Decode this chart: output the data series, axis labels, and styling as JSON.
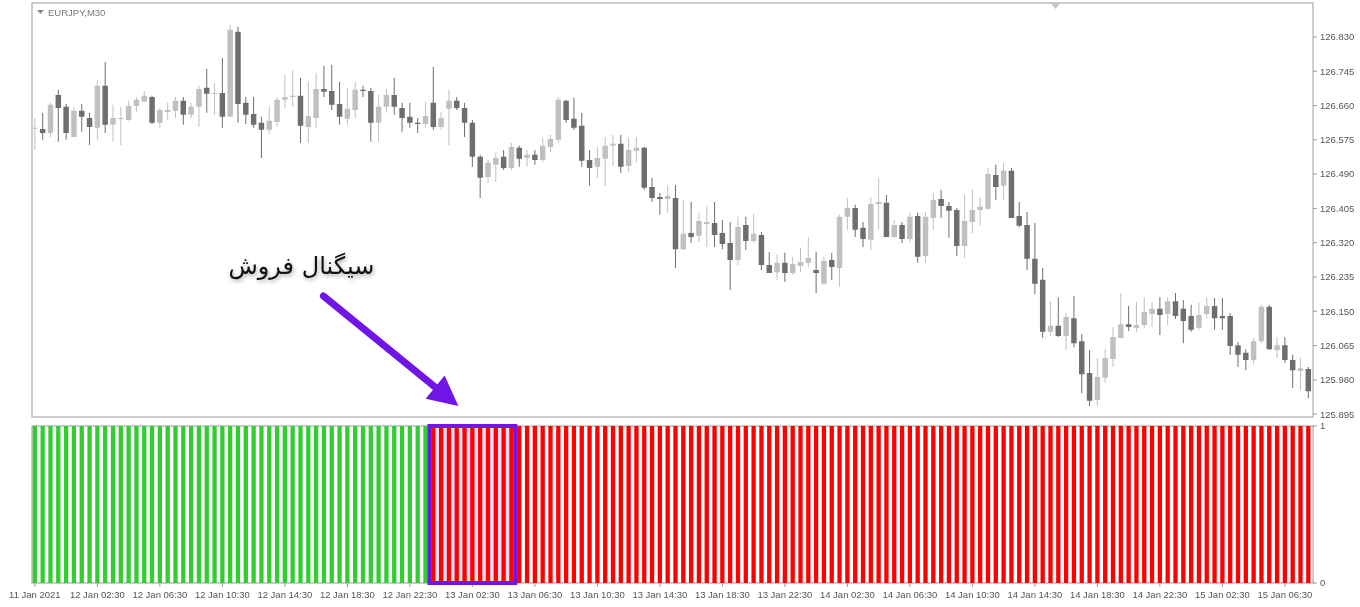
{
  "chart_data": [
    {
      "type": "candlestick",
      "title": "EURJPY,M30",
      "x": [
        "2021-01-11T22:30",
        "2021-01-11T23:00",
        "2021-01-11T23:30",
        "2021-01-12T00:00",
        "2021-01-12T00:30",
        "2021-01-12T01:00",
        "2021-01-12T01:30",
        "2021-01-12T02:00",
        "2021-01-12T02:30",
        "2021-01-12T03:00",
        "2021-01-12T03:30",
        "2021-01-12T04:00",
        "2021-01-12T04:30",
        "2021-01-12T05:00",
        "2021-01-12T05:30",
        "2021-01-12T06:00",
        "2021-01-12T06:30",
        "2021-01-12T07:00",
        "2021-01-12T07:30",
        "2021-01-12T08:00",
        "2021-01-12T08:30",
        "2021-01-12T09:00",
        "2021-01-12T09:30",
        "2021-01-12T10:00",
        "2021-01-12T10:30",
        "2021-01-12T11:00",
        "2021-01-12T11:30",
        "2021-01-12T12:00",
        "2021-01-12T12:30",
        "2021-01-12T13:00",
        "2021-01-12T13:30",
        "2021-01-12T14:00",
        "2021-01-12T14:30",
        "2021-01-12T15:00",
        "2021-01-12T15:30",
        "2021-01-12T16:00",
        "2021-01-12T16:30",
        "2021-01-12T17:00",
        "2021-01-12T17:30",
        "2021-01-12T18:00",
        "2021-01-12T18:30",
        "2021-01-12T19:00",
        "2021-01-12T19:30",
        "2021-01-12T20:00",
        "2021-01-12T20:30",
        "2021-01-12T21:00",
        "2021-01-12T21:30",
        "2021-01-12T22:00",
        "2021-01-12T22:30",
        "2021-01-12T23:00",
        "2021-01-12T23:30",
        "2021-01-13T00:00",
        "2021-01-13T00:30",
        "2021-01-13T01:00",
        "2021-01-13T01:30",
        "2021-01-13T02:00",
        "2021-01-13T02:30",
        "2021-01-13T03:00",
        "2021-01-13T03:30",
        "2021-01-13T04:00",
        "2021-01-13T04:30",
        "2021-01-13T05:00",
        "2021-01-13T05:30",
        "2021-01-13T06:00",
        "2021-01-13T06:30",
        "2021-01-13T07:00",
        "2021-01-13T07:30",
        "2021-01-13T08:00",
        "2021-01-13T08:30",
        "2021-01-13T09:00",
        "2021-01-13T09:30",
        "2021-01-13T10:00",
        "2021-01-13T10:30",
        "2021-01-13T11:00",
        "2021-01-13T11:30",
        "2021-01-13T12:00",
        "2021-01-13T12:30",
        "2021-01-13T13:00",
        "2021-01-13T13:30",
        "2021-01-13T14:00",
        "2021-01-13T14:30",
        "2021-01-13T15:00",
        "2021-01-13T15:30",
        "2021-01-13T16:00",
        "2021-01-13T16:30",
        "2021-01-13T17:00",
        "2021-01-13T17:30",
        "2021-01-13T18:00",
        "2021-01-13T18:30",
        "2021-01-13T19:00",
        "2021-01-13T19:30",
        "2021-01-13T20:00",
        "2021-01-13T20:30",
        "2021-01-13T21:00",
        "2021-01-13T21:30",
        "2021-01-13T22:00",
        "2021-01-13T22:30",
        "2021-01-13T23:00",
        "2021-01-13T23:30",
        "2021-01-14T00:00",
        "2021-01-14T00:30",
        "2021-01-14T01:00",
        "2021-01-14T01:30",
        "2021-01-14T02:00",
        "2021-01-14T02:30",
        "2021-01-14T03:00",
        "2021-01-14T03:30",
        "2021-01-14T04:00",
        "2021-01-14T04:30",
        "2021-01-14T05:00",
        "2021-01-14T05:30",
        "2021-01-14T06:00",
        "2021-01-14T06:30",
        "2021-01-14T07:00",
        "2021-01-14T07:30",
        "2021-01-14T08:00",
        "2021-01-14T08:30",
        "2021-01-14T09:00",
        "2021-01-14T09:30",
        "2021-01-14T10:00",
        "2021-01-14T10:30",
        "2021-01-14T11:00",
        "2021-01-14T11:30",
        "2021-01-14T12:00",
        "2021-01-14T12:30",
        "2021-01-14T13:00",
        "2021-01-14T13:30",
        "2021-01-14T14:00",
        "2021-01-14T14:30",
        "2021-01-14T15:00",
        "2021-01-14T15:30",
        "2021-01-14T16:00",
        "2021-01-14T16:30",
        "2021-01-14T17:00",
        "2021-01-14T17:30",
        "2021-01-14T18:00",
        "2021-01-14T18:30",
        "2021-01-14T19:00",
        "2021-01-14T19:30",
        "2021-01-14T20:00",
        "2021-01-14T20:30",
        "2021-01-14T21:00",
        "2021-01-14T21:30",
        "2021-01-14T22:00",
        "2021-01-14T22:30",
        "2021-01-14T23:00",
        "2021-01-14T23:30",
        "2021-01-15T00:00",
        "2021-01-15T00:30",
        "2021-01-15T01:00",
        "2021-01-15T01:30",
        "2021-01-15T02:00",
        "2021-01-15T02:30",
        "2021-01-15T03:00",
        "2021-01-15T03:30",
        "2021-01-15T04:00",
        "2021-01-15T04:30",
        "2021-01-15T05:00",
        "2021-01-15T05:30",
        "2021-01-15T06:00",
        "2021-01-15T06:30",
        "2021-01-15T07:00",
        "2021-01-15T07:30",
        "2021-01-15T08:00"
      ],
      "ohlc": [
        [
          126.605,
          126.629,
          126.55,
          126.605
        ],
        [
          126.602,
          126.642,
          126.575,
          126.592
        ],
        [
          126.592,
          126.667,
          126.582,
          126.662
        ],
        [
          126.686,
          126.699,
          126.57,
          126.654
        ],
        [
          126.657,
          126.664,
          126.575,
          126.592
        ],
        [
          126.582,
          126.657,
          126.582,
          126.647
        ],
        [
          126.647,
          126.664,
          126.595,
          126.632
        ],
        [
          126.629,
          126.642,
          126.562,
          126.607
        ],
        [
          126.605,
          126.724,
          126.575,
          126.709
        ],
        [
          126.709,
          126.768,
          126.592,
          126.612
        ],
        [
          126.612,
          126.662,
          126.57,
          126.629
        ],
        [
          126.627,
          126.657,
          126.562,
          126.629
        ],
        [
          126.624,
          126.672,
          126.622,
          126.659
        ],
        [
          126.659,
          126.681,
          126.644,
          126.674
        ],
        [
          126.669,
          126.696,
          126.669,
          126.684
        ],
        [
          126.681,
          126.684,
          126.614,
          126.617
        ],
        [
          126.617,
          126.654,
          126.605,
          126.649
        ],
        [
          126.644,
          126.667,
          126.624,
          126.649
        ],
        [
          126.647,
          126.681,
          126.629,
          126.672
        ],
        [
          126.672,
          126.681,
          126.612,
          126.637
        ],
        [
          126.637,
          126.667,
          126.629,
          126.657
        ],
        [
          126.657,
          126.709,
          126.607,
          126.701
        ],
        [
          126.704,
          126.751,
          126.642,
          126.689
        ],
        [
          126.689,
          126.716,
          126.637,
          126.691
        ],
        [
          126.691,
          126.778,
          126.605,
          126.632
        ],
        [
          126.632,
          126.86,
          126.632,
          126.848
        ],
        [
          126.843,
          126.855,
          126.617,
          126.664
        ],
        [
          126.667,
          126.681,
          126.614,
          126.637
        ],
        [
          126.639,
          126.681,
          126.605,
          126.612
        ],
        [
          126.617,
          126.632,
          126.53,
          126.6
        ],
        [
          126.6,
          126.657,
          126.59,
          126.622
        ],
        [
          126.619,
          126.681,
          126.607,
          126.674
        ],
        [
          126.674,
          126.736,
          126.654,
          126.681
        ],
        [
          126.681,
          126.748,
          126.657,
          126.684
        ],
        [
          126.684,
          126.729,
          126.567,
          126.61
        ],
        [
          126.607,
          126.719,
          126.567,
          126.634
        ],
        [
          126.629,
          126.741,
          126.605,
          126.701
        ],
        [
          126.701,
          126.758,
          126.681,
          126.694
        ],
        [
          126.696,
          126.761,
          126.649,
          126.662
        ],
        [
          126.664,
          126.719,
          126.612,
          126.632
        ],
        [
          126.627,
          126.704,
          126.612,
          126.652
        ],
        [
          126.649,
          126.719,
          126.629,
          126.699
        ],
        [
          126.699,
          126.709,
          126.681,
          126.696
        ],
        [
          126.696,
          126.704,
          126.57,
          126.617
        ],
        [
          126.617,
          126.686,
          126.57,
          126.657
        ],
        [
          126.657,
          126.701,
          126.642,
          126.686
        ],
        [
          126.686,
          126.729,
          126.637,
          126.657
        ],
        [
          126.654,
          126.667,
          126.595,
          126.629
        ],
        [
          126.632,
          126.667,
          126.605,
          126.617
        ],
        [
          126.617,
          126.629,
          126.592,
          126.614
        ],
        [
          126.614,
          126.669,
          126.605,
          126.634
        ],
        [
          126.667,
          126.756,
          126.6,
          126.607
        ],
        [
          126.607,
          126.644,
          126.6,
          126.629
        ],
        [
          126.652,
          126.699,
          126.562,
          126.672
        ],
        [
          126.672,
          126.681,
          126.649,
          126.654
        ],
        [
          126.654,
          126.667,
          126.582,
          126.617
        ],
        [
          126.617,
          126.624,
          126.508,
          126.533
        ],
        [
          126.533,
          126.538,
          126.431,
          126.481
        ],
        [
          126.483,
          126.525,
          126.468,
          126.518
        ],
        [
          126.513,
          126.543,
          126.471,
          126.53
        ],
        [
          126.533,
          126.55,
          126.5,
          126.505
        ],
        [
          126.505,
          126.567,
          126.5,
          126.557
        ],
        [
          126.555,
          126.56,
          126.508,
          126.528
        ],
        [
          126.53,
          126.55,
          126.508,
          126.538
        ],
        [
          126.538,
          126.55,
          126.513,
          126.525
        ],
        [
          126.525,
          126.58,
          126.52,
          126.56
        ],
        [
          126.557,
          126.587,
          126.545,
          126.577
        ],
        [
          126.575,
          126.681,
          126.567,
          126.674
        ],
        [
          126.672,
          126.674,
          126.617,
          126.624
        ],
        [
          126.627,
          126.679,
          126.6,
          126.605
        ],
        [
          126.61,
          126.642,
          126.508,
          126.523
        ],
        [
          126.525,
          126.55,
          126.461,
          126.505
        ],
        [
          126.508,
          126.557,
          126.481,
          126.53
        ],
        [
          126.528,
          126.582,
          126.461,
          126.56
        ],
        [
          126.56,
          126.587,
          126.51,
          126.565
        ],
        [
          126.565,
          126.587,
          126.493,
          126.508
        ],
        [
          126.51,
          126.58,
          126.495,
          126.55
        ],
        [
          126.547,
          126.582,
          126.52,
          126.555
        ],
        [
          126.555,
          126.557,
          126.451,
          126.456
        ],
        [
          126.458,
          126.481,
          126.421,
          126.431
        ],
        [
          126.433,
          126.443,
          126.389,
          126.428
        ],
        [
          126.428,
          126.461,
          126.394,
          126.436
        ],
        [
          126.431,
          126.463,
          126.257,
          126.304
        ],
        [
          126.304,
          126.426,
          126.302,
          126.342
        ],
        [
          126.344,
          126.421,
          126.319,
          126.334
        ],
        [
          126.337,
          126.394,
          126.322,
          126.374
        ],
        [
          126.366,
          126.409,
          126.309,
          126.371
        ],
        [
          126.369,
          126.421,
          126.309,
          126.339
        ],
        [
          126.344,
          126.376,
          126.304,
          126.317
        ],
        [
          126.319,
          126.371,
          126.203,
          126.277
        ],
        [
          126.277,
          126.384,
          126.265,
          126.359
        ],
        [
          126.364,
          126.384,
          126.302,
          126.324
        ],
        [
          126.324,
          126.391,
          126.319,
          126.342
        ],
        [
          126.339,
          126.347,
          126.252,
          126.265
        ],
        [
          126.265,
          126.297,
          126.245,
          126.245
        ],
        [
          126.247,
          126.29,
          126.228,
          126.27
        ],
        [
          126.27,
          126.295,
          126.223,
          126.245
        ],
        [
          126.245,
          126.285,
          126.24,
          126.267
        ],
        [
          126.262,
          126.307,
          126.247,
          126.272
        ],
        [
          126.27,
          126.334,
          126.26,
          126.282
        ],
        [
          126.252,
          126.297,
          126.195,
          126.245
        ],
        [
          126.218,
          126.285,
          126.215,
          126.275
        ],
        [
          126.277,
          126.295,
          126.228,
          126.26
        ],
        [
          126.257,
          126.389,
          126.21,
          126.384
        ],
        [
          126.384,
          126.431,
          126.352,
          126.406
        ],
        [
          126.406,
          126.414,
          126.334,
          126.352
        ],
        [
          126.357,
          126.371,
          126.309,
          126.329
        ],
        [
          126.327,
          126.433,
          126.302,
          126.416
        ],
        [
          126.416,
          126.481,
          126.352,
          126.421
        ],
        [
          126.419,
          126.438,
          126.334,
          126.334
        ],
        [
          126.334,
          126.376,
          126.332,
          126.364
        ],
        [
          126.364,
          126.371,
          126.319,
          126.329
        ],
        [
          126.329,
          126.394,
          126.322,
          126.384
        ],
        [
          126.386,
          126.394,
          126.27,
          126.285
        ],
        [
          126.287,
          126.396,
          126.27,
          126.384
        ],
        [
          126.381,
          126.443,
          126.352,
          126.426
        ],
        [
          126.428,
          126.451,
          126.381,
          126.411
        ],
        [
          126.411,
          126.421,
          126.332,
          126.399
        ],
        [
          126.401,
          126.406,
          126.287,
          126.312
        ],
        [
          126.312,
          126.438,
          126.282,
          126.374
        ],
        [
          126.371,
          126.451,
          126.344,
          126.401
        ],
        [
          126.401,
          126.433,
          126.362,
          126.409
        ],
        [
          126.404,
          126.505,
          126.401,
          126.49
        ],
        [
          126.488,
          126.513,
          126.426,
          126.458
        ],
        [
          126.461,
          126.518,
          126.426,
          126.498
        ],
        [
          126.498,
          126.505,
          126.381,
          126.381
        ],
        [
          126.386,
          126.421,
          126.359,
          126.362
        ],
        [
          126.364,
          126.396,
          126.252,
          126.28
        ],
        [
          126.28,
          126.369,
          126.193,
          126.218
        ],
        [
          126.228,
          126.257,
          126.084,
          126.099
        ],
        [
          126.099,
          126.175,
          126.089,
          126.114
        ],
        [
          126.114,
          126.185,
          126.086,
          126.089
        ],
        [
          126.089,
          126.146,
          126.054,
          126.136
        ],
        [
          126.133,
          126.188,
          126.061,
          126.071
        ],
        [
          126.076,
          126.094,
          125.947,
          125.994
        ],
        [
          125.997,
          126.054,
          125.915,
          125.928
        ],
        [
          125.93,
          126.034,
          125.915,
          125.987
        ],
        [
          125.985,
          126.056,
          125.972,
          126.034
        ],
        [
          126.032,
          126.111,
          126.012,
          126.086
        ],
        [
          126.084,
          126.195,
          126.084,
          126.118
        ],
        [
          126.118,
          126.163,
          126.101,
          126.111
        ],
        [
          126.109,
          126.173,
          126.099,
          126.116
        ],
        [
          126.116,
          126.185,
          126.109,
          126.148
        ],
        [
          126.143,
          126.173,
          126.111,
          126.156
        ],
        [
          126.156,
          126.185,
          126.091,
          126.141
        ],
        [
          126.143,
          126.185,
          126.116,
          126.175
        ],
        [
          126.175,
          126.195,
          126.131,
          126.138
        ],
        [
          126.156,
          126.178,
          126.071,
          126.126
        ],
        [
          126.138,
          126.166,
          126.099,
          126.104
        ],
        [
          126.109,
          126.171,
          126.104,
          126.141
        ],
        [
          126.143,
          126.185,
          126.133,
          126.163
        ],
        [
          126.163,
          126.183,
          126.104,
          126.133
        ],
        [
          126.138,
          126.183,
          126.104,
          126.133
        ],
        [
          126.138,
          126.146,
          126.042,
          126.064
        ],
        [
          126.066,
          126.074,
          126.012,
          126.042
        ],
        [
          126.047,
          126.056,
          126.004,
          126.029
        ],
        [
          126.029,
          126.084,
          126.019,
          126.076
        ],
        [
          126.076,
          126.166,
          126.071,
          126.161
        ],
        [
          126.161,
          126.166,
          126.054,
          126.056
        ],
        [
          126.054,
          126.086,
          126.034,
          126.066
        ],
        [
          126.066,
          126.086,
          126.022,
          126.029
        ],
        [
          126.029,
          126.042,
          125.96,
          126.004
        ],
        [
          126.002,
          126.034,
          125.955,
          126.009
        ],
        [
          126.007,
          126.012,
          125.935,
          125.952
        ]
      ],
      "colors": [
        "#c0c0c0",
        "#6e6e6e",
        "#c0c0c0",
        "#6e6e6e",
        "#6e6e6e",
        "#c0c0c0",
        "#6e6e6e",
        "#6e6e6e",
        "#c0c0c0",
        "#6e6e6e",
        "#c0c0c0",
        "#c0c0c0",
        "#c0c0c0",
        "#c0c0c0",
        "#c0c0c0",
        "#6e6e6e",
        "#c0c0c0",
        "#c0c0c0",
        "#c0c0c0",
        "#6e6e6e",
        "#c0c0c0",
        "#c0c0c0",
        "#6e6e6e",
        "#c0c0c0",
        "#6e6e6e",
        "#c0c0c0",
        "#6e6e6e",
        "#6e6e6e",
        "#6e6e6e",
        "#6e6e6e",
        "#c0c0c0",
        "#c0c0c0",
        "#c0c0c0",
        "#c0c0c0",
        "#6e6e6e",
        "#c0c0c0",
        "#c0c0c0",
        "#6e6e6e",
        "#6e6e6e",
        "#6e6e6e",
        "#c0c0c0",
        "#c0c0c0",
        "#6e6e6e",
        "#6e6e6e",
        "#c0c0c0",
        "#c0c0c0",
        "#6e6e6e",
        "#6e6e6e",
        "#6e6e6e",
        "#6e6e6e",
        "#c0c0c0",
        "#6e6e6e",
        "#c0c0c0",
        "#c0c0c0",
        "#6e6e6e",
        "#6e6e6e",
        "#6e6e6e",
        "#6e6e6e",
        "#c0c0c0",
        "#c0c0c0",
        "#6e6e6e",
        "#c0c0c0",
        "#6e6e6e",
        "#c0c0c0",
        "#6e6e6e",
        "#c0c0c0",
        "#c0c0c0",
        "#c0c0c0",
        "#6e6e6e",
        "#6e6e6e",
        "#6e6e6e",
        "#6e6e6e",
        "#c0c0c0",
        "#c0c0c0",
        "#c0c0c0",
        "#6e6e6e",
        "#c0c0c0",
        "#c0c0c0",
        "#6e6e6e",
        "#6e6e6e",
        "#6e6e6e",
        "#c0c0c0",
        "#6e6e6e",
        "#c0c0c0",
        "#6e6e6e",
        "#c0c0c0",
        "#c0c0c0",
        "#6e6e6e",
        "#6e6e6e",
        "#6e6e6e",
        "#c0c0c0",
        "#6e6e6e",
        "#c0c0c0",
        "#6e6e6e",
        "#6e6e6e",
        "#c0c0c0",
        "#6e6e6e",
        "#c0c0c0",
        "#c0c0c0",
        "#c0c0c0",
        "#6e6e6e",
        "#c0c0c0",
        "#6e6e6e",
        "#c0c0c0",
        "#c0c0c0",
        "#6e6e6e",
        "#6e6e6e",
        "#c0c0c0",
        "#c0c0c0",
        "#6e6e6e",
        "#c0c0c0",
        "#6e6e6e",
        "#c0c0c0",
        "#6e6e6e",
        "#c0c0c0",
        "#c0c0c0",
        "#6e6e6e",
        "#6e6e6e",
        "#6e6e6e",
        "#c0c0c0",
        "#c0c0c0",
        "#c0c0c0",
        "#c0c0c0",
        "#6e6e6e",
        "#c0c0c0",
        "#6e6e6e",
        "#6e6e6e",
        "#6e6e6e",
        "#6e6e6e",
        "#6e6e6e",
        "#c0c0c0",
        "#6e6e6e",
        "#c0c0c0",
        "#6e6e6e",
        "#6e6e6e",
        "#6e6e6e",
        "#c0c0c0",
        "#c0c0c0",
        "#c0c0c0",
        "#c0c0c0",
        "#6e6e6e",
        "#c0c0c0",
        "#c0c0c0",
        "#c0c0c0",
        "#6e6e6e",
        "#c0c0c0",
        "#6e6e6e",
        "#6e6e6e",
        "#6e6e6e",
        "#c0c0c0",
        "#c0c0c0",
        "#6e6e6e",
        "#6e6e6e",
        "#6e6e6e",
        "#6e6e6e",
        "#6e6e6e",
        "#c0c0c0",
        "#c0c0c0",
        "#6e6e6e",
        "#c0c0c0",
        "#6e6e6e",
        "#6e6e6e",
        "#c0c0c0",
        "#6e6e6e"
      ],
      "xlim": [
        "2021-01-11T22:19",
        "2021-01-15T08:18"
      ],
      "ylim": [
        125.888,
        126.914
      ],
      "yticks": [
        {
          "value": 126.83,
          "label": "126.830"
        },
        126.745,
        {
          "value": 126.66,
          "label": "126.660"
        },
        126.575,
        {
          "value": 126.49,
          "label": "126.490"
        },
        126.405,
        {
          "value": 126.32,
          "label": "126.320"
        },
        126.235,
        {
          "value": 126.15,
          "label": "126.150"
        },
        126.065,
        {
          "value": 125.98,
          "label": "125.980"
        },
        125.895
      ],
      "tick_labels": "y"
    },
    {
      "type": "bar",
      "xlim": [
        "2021-01-11T22:19",
        "2021-01-15T08:18"
      ],
      "xticks": [
        {
          "value": "2021-01-11T22:30",
          "label": "11 Jan 2021"
        },
        {
          "value": "2021-01-12T02:30",
          "label": "12 Jan 02:30"
        },
        {
          "value": "2021-01-12T06:30",
          "label": "12 Jan 06:30"
        },
        {
          "value": "2021-01-12T10:30",
          "label": "12 Jan 10:30"
        },
        {
          "value": "2021-01-12T14:30",
          "label": "12 Jan 14:30"
        },
        {
          "value": "2021-01-12T18:30",
          "label": "12 Jan 18:30"
        },
        {
          "value": "2021-01-12T22:30",
          "label": "12 Jan 22:30"
        },
        {
          "value": "2021-01-13T02:30",
          "label": "13 Jan 02:30"
        },
        {
          "value": "2021-01-13T06:30",
          "label": "13 Jan 06:30"
        },
        {
          "value": "2021-01-13T10:30",
          "label": "13 Jan 10:30"
        },
        {
          "value": "2021-01-13T14:30",
          "label": "13 Jan 14:30"
        },
        {
          "value": "2021-01-13T18:30",
          "label": "13 Jan 18:30"
        },
        {
          "value": "2021-01-13T22:30",
          "label": "13 Jan 22:30"
        },
        {
          "value": "2021-01-14T02:30",
          "label": "14 Jan 02:30"
        },
        {
          "value": "2021-01-14T06:30",
          "label": "14 Jan 06:30"
        },
        {
          "value": "2021-01-14T10:30",
          "label": "14 Jan 10:30"
        },
        {
          "value": "2021-01-14T14:30",
          "label": "14 Jan 14:30"
        },
        {
          "value": "2021-01-14T18:30",
          "label": "14 Jan 18:30"
        },
        {
          "value": "2021-01-14T22:30",
          "label": "14 Jan 22:30"
        },
        {
          "value": "2021-01-15T02:30",
          "label": "15 Jan 02:30"
        },
        {
          "value": "2021-01-15T06:30",
          "label": "15 Jan 06:30"
        }
      ],
      "ylim": [
        0,
        1
      ],
      "yticks": [
        0,
        1
      ],
      "series": [
        {
          "color": "#32cd32",
          "x": [
            "2021-01-11T22:30",
            "2021-01-11T23:00",
            "2021-01-11T23:30",
            "2021-01-12T00:00",
            "2021-01-12T00:30",
            "2021-01-12T01:00",
            "2021-01-12T01:30",
            "2021-01-12T02:00",
            "2021-01-12T02:30",
            "2021-01-12T03:00",
            "2021-01-12T03:30",
            "2021-01-12T04:00",
            "2021-01-12T04:30",
            "2021-01-12T05:00",
            "2021-01-12T05:30",
            "2021-01-12T06:00",
            "2021-01-12T06:30",
            "2021-01-12T07:00",
            "2021-01-12T07:30",
            "2021-01-12T08:00",
            "2021-01-12T08:30",
            "2021-01-12T09:00",
            "2021-01-12T09:30",
            "2021-01-12T10:00",
            "2021-01-12T10:30",
            "2021-01-12T11:00",
            "2021-01-12T11:30",
            "2021-01-12T12:00",
            "2021-01-12T12:30",
            "2021-01-12T13:00",
            "2021-01-12T13:30",
            "2021-01-12T14:00",
            "2021-01-12T14:30",
            "2021-01-12T15:00",
            "2021-01-12T15:30",
            "2021-01-12T16:00",
            "2021-01-12T16:30",
            "2021-01-12T17:00",
            "2021-01-12T17:30",
            "2021-01-12T18:00",
            "2021-01-12T18:30",
            "2021-01-12T19:00",
            "2021-01-12T19:30",
            "2021-01-12T20:00",
            "2021-01-12T20:30",
            "2021-01-12T21:00",
            "2021-01-12T21:30",
            "2021-01-12T22:00",
            "2021-01-12T22:30",
            "2021-01-12T23:00",
            "2021-01-12T23:30"
          ],
          "values": [
            1,
            1,
            1,
            1,
            1,
            1,
            1,
            1,
            1,
            1,
            1,
            1,
            1,
            1,
            1,
            1,
            1,
            1,
            1,
            1,
            1,
            1,
            1,
            1,
            1,
            1,
            1,
            1,
            1,
            1,
            1,
            1,
            1,
            1,
            1,
            1,
            1,
            1,
            1,
            1,
            1,
            1,
            1,
            1,
            1,
            1,
            1,
            1,
            1,
            1,
            1
          ]
        },
        {
          "color": "#ff0000",
          "x": [
            "2021-01-13T00:00",
            "2021-01-13T00:30",
            "2021-01-13T01:00",
            "2021-01-13T01:30",
            "2021-01-13T02:00",
            "2021-01-13T02:30",
            "2021-01-13T03:00",
            "2021-01-13T03:30",
            "2021-01-13T04:00",
            "2021-01-13T04:30",
            "2021-01-13T05:00",
            "2021-01-13T05:30",
            "2021-01-13T06:00",
            "2021-01-13T06:30",
            "2021-01-13T07:00",
            "2021-01-13T07:30",
            "2021-01-13T08:00",
            "2021-01-13T08:30",
            "2021-01-13T09:00",
            "2021-01-13T09:30",
            "2021-01-13T10:00",
            "2021-01-13T10:30",
            "2021-01-13T11:00",
            "2021-01-13T11:30",
            "2021-01-13T12:00",
            "2021-01-13T12:30",
            "2021-01-13T13:00",
            "2021-01-13T13:30",
            "2021-01-13T14:00",
            "2021-01-13T14:30",
            "2021-01-13T15:00",
            "2021-01-13T15:30",
            "2021-01-13T16:00",
            "2021-01-13T16:30",
            "2021-01-13T17:00",
            "2021-01-13T17:30",
            "2021-01-13T18:00",
            "2021-01-13T18:30",
            "2021-01-13T19:00",
            "2021-01-13T19:30",
            "2021-01-13T20:00",
            "2021-01-13T20:30",
            "2021-01-13T21:00",
            "2021-01-13T21:30",
            "2021-01-13T22:00",
            "2021-01-13T22:30",
            "2021-01-13T23:00",
            "2021-01-13T23:30",
            "2021-01-14T00:00",
            "2021-01-14T00:30",
            "2021-01-14T01:00",
            "2021-01-14T01:30",
            "2021-01-14T02:00",
            "2021-01-14T02:30",
            "2021-01-14T03:00",
            "2021-01-14T03:30",
            "2021-01-14T04:00",
            "2021-01-14T04:30",
            "2021-01-14T05:00",
            "2021-01-14T05:30",
            "2021-01-14T06:00",
            "2021-01-14T06:30",
            "2021-01-14T07:00",
            "2021-01-14T07:30",
            "2021-01-14T08:00",
            "2021-01-14T08:30",
            "2021-01-14T09:00",
            "2021-01-14T09:30",
            "2021-01-14T10:00",
            "2021-01-14T10:30",
            "2021-01-14T11:00",
            "2021-01-14T11:30",
            "2021-01-14T12:00",
            "2021-01-14T12:30",
            "2021-01-14T13:00",
            "2021-01-14T13:30",
            "2021-01-14T14:00",
            "2021-01-14T14:30",
            "2021-01-14T15:00",
            "2021-01-14T15:30",
            "2021-01-14T16:00",
            "2021-01-14T16:30",
            "2021-01-14T17:00",
            "2021-01-14T17:30",
            "2021-01-14T18:00",
            "2021-01-14T18:30",
            "2021-01-14T19:00",
            "2021-01-14T19:30",
            "2021-01-14T20:00",
            "2021-01-14T20:30",
            "2021-01-14T21:00",
            "2021-01-14T21:30",
            "2021-01-14T22:00",
            "2021-01-14T22:30",
            "2021-01-14T23:00",
            "2021-01-14T23:30",
            "2021-01-15T00:00",
            "2021-01-15T00:30",
            "2021-01-15T01:00",
            "2021-01-15T01:30",
            "2021-01-15T02:00",
            "2021-01-15T02:30",
            "2021-01-15T03:00",
            "2021-01-15T03:30",
            "2021-01-15T04:00",
            "2021-01-15T04:30",
            "2021-01-15T05:00",
            "2021-01-15T05:30",
            "2021-01-15T06:00",
            "2021-01-15T06:30",
            "2021-01-15T07:00",
            "2021-01-15T07:30",
            "2021-01-15T08:00"
          ],
          "values": [
            1,
            1,
            1,
            1,
            1,
            1,
            1,
            1,
            1,
            1,
            1,
            1,
            1,
            1,
            1,
            1,
            1,
            1,
            1,
            1,
            1,
            1,
            1,
            1,
            1,
            1,
            1,
            1,
            1,
            1,
            1,
            1,
            1,
            1,
            1,
            1,
            1,
            1,
            1,
            1,
            1,
            1,
            1,
            1,
            1,
            1,
            1,
            1,
            1,
            1,
            1,
            1,
            1,
            1,
            1,
            1,
            1,
            1,
            1,
            1,
            1,
            1,
            1,
            1,
            1,
            1,
            1,
            1,
            1,
            1,
            1,
            1,
            1,
            1,
            1,
            1,
            1,
            1,
            1,
            1,
            1,
            1,
            1,
            1,
            1,
            1,
            1,
            1,
            1,
            1,
            1,
            1,
            1,
            1,
            1,
            1,
            1,
            1,
            1,
            1,
            1,
            1,
            1,
            1,
            1,
            1,
            1,
            1,
            1,
            1,
            1,
            1,
            1
          ]
        }
      ],
      "bands": [
        {
          "axis": "x",
          "from": "2021-01-12T23:45",
          "to": "2021-01-13T05:15",
          "color": "#7015e5"
        }
      ],
      "annotations": [
        "سیگنال فروش"
      ]
    }
  ]
}
